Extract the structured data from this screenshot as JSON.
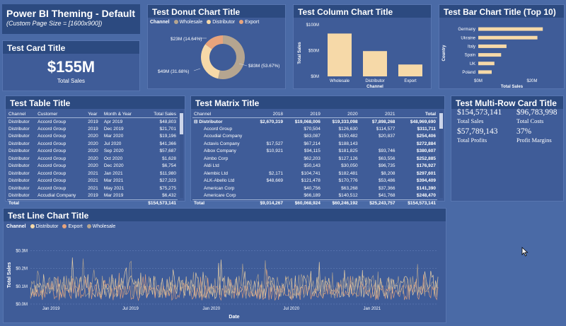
{
  "header": {
    "title": "Power BI Theming - Default",
    "subtitle": "(Custom Page Size = [1600x900])"
  },
  "card": {
    "title": "Test Card Title",
    "value": "$155M",
    "label": "Total Sales"
  },
  "donut": {
    "title": "Test Donut Chart Title",
    "legend_title": "Channel",
    "labels": [
      "$23M (14.64%)",
      "$49M (31.68%)",
      "$83M (53.67%)"
    ]
  },
  "column": {
    "title": "Test Column Chart Title"
  },
  "bar": {
    "title": "Test Bar Chart Title (Top 10)"
  },
  "table": {
    "title": "Test Table Title",
    "columns": [
      "Channel",
      "Customer",
      "Year",
      "Month & Year",
      "Total Sales"
    ],
    "rows": [
      [
        "Distributor",
        "Accord Group",
        "2019",
        "Apr 2019",
        "$48,803"
      ],
      [
        "Distributor",
        "Accord Group",
        "2019",
        "Dec 2019",
        "$21,701"
      ],
      [
        "Distributor",
        "Accord Group",
        "2020",
        "Mar 2020",
        "$19,196"
      ],
      [
        "Distributor",
        "Accord Group",
        "2020",
        "Jul 2020",
        "$41,366"
      ],
      [
        "Distributor",
        "Accord Group",
        "2020",
        "Sep 2020",
        "$57,687"
      ],
      [
        "Distributor",
        "Accord Group",
        "2020",
        "Oct 2020",
        "$1,628"
      ],
      [
        "Distributor",
        "Accord Group",
        "2020",
        "Dec 2020",
        "$6,754"
      ],
      [
        "Distributor",
        "Accord Group",
        "2021",
        "Jan 2021",
        "$11,980"
      ],
      [
        "Distributor",
        "Accord Group",
        "2021",
        "Mar 2021",
        "$27,323"
      ],
      [
        "Distributor",
        "Accord Group",
        "2021",
        "May 2021",
        "$75,275"
      ],
      [
        "Distributor",
        "Accudial Company",
        "2019",
        "Mar 2019",
        "$6,432"
      ]
    ],
    "total_label": "Total",
    "total_value": "$154,573,141"
  },
  "matrix": {
    "title": "Test Matrix Title",
    "columns": [
      "Channel",
      "2018",
      "2019",
      "2020",
      "2021",
      "Total"
    ],
    "group": [
      "⊟ Distributor",
      "$2,670,319",
      "$19,068,006",
      "$19,333,098",
      "$7,898,268",
      "$48,969,690"
    ],
    "rows": [
      [
        "Accord Group",
        "",
        "$70,504",
        "$126,630",
        "$114,577",
        "$311,711"
      ],
      [
        "Accudial Company",
        "",
        "$83,087",
        "$150,482",
        "$20,837",
        "$254,406"
      ],
      [
        "Actavis Company",
        "$17,527",
        "$67,214",
        "$188,143",
        "",
        "$272,884"
      ],
      [
        "Aibox Company",
        "$10,921",
        "$94,115",
        "$181,825",
        "$93,746",
        "$380,607"
      ],
      [
        "Aimbo Corp",
        "",
        "$62,203",
        "$127,126",
        "$63,556",
        "$252,885"
      ],
      [
        "Aldi Ltd",
        "",
        "$50,143",
        "$30,050",
        "$96,735",
        "$176,927"
      ],
      [
        "Alembic Ltd",
        "$2,171",
        "$104,741",
        "$182,481",
        "$8,208",
        "$297,601"
      ],
      [
        "ALK-Abello Ltd",
        "$48,669",
        "$121,478",
        "$170,776",
        "$53,486",
        "$394,409"
      ],
      [
        "American Corp",
        "",
        "$40,756",
        "$63,268",
        "$37,366",
        "$141,390"
      ],
      [
        "Americare Corp",
        "",
        "$66,189",
        "$140,512",
        "$41,768",
        "$248,470"
      ]
    ],
    "total": [
      "Total",
      "$9,014,267",
      "$60,068,924",
      "$60,246,192",
      "$25,243,757",
      "$154,573,141"
    ]
  },
  "multirow": {
    "title": "Test Multi-Row Card Title",
    "items": [
      {
        "value": "$154,573,141",
        "label": "Total Sales"
      },
      {
        "value": "$96,783,998",
        "label": "Total Costs"
      },
      {
        "value": "$57,789,143",
        "label": "Total Profits"
      },
      {
        "value": "37%",
        "label": "Profit Margins"
      }
    ]
  },
  "line": {
    "title": "Test Line Chart Title",
    "legend_title": "Channel"
  },
  "colors": {
    "wholesale": "#b5a590",
    "distributor": "#f6d9a8",
    "export": "#e8a47c",
    "panel": "#3f5c98",
    "title_bar": "#2c4a80",
    "background": "#4a6aa6"
  },
  "chart_data": [
    {
      "type": "pie",
      "chart": "donut",
      "title": "Test Donut Chart Title",
      "legend_title": "Channel",
      "categories": [
        "Wholesale",
        "Distributor",
        "Export"
      ],
      "values": [
        83,
        49,
        23
      ],
      "percent": [
        53.67,
        31.68,
        14.64
      ],
      "unit": "$M",
      "legend_position": "top-left"
    },
    {
      "type": "bar",
      "chart": "column",
      "title": "Test Column Chart Title",
      "xlabel": "Channel",
      "ylabel": "Total Sales",
      "categories": [
        "Wholesale",
        "Distributor",
        "Export"
      ],
      "values": [
        83,
        49,
        23
      ],
      "yticks": [
        "$0M",
        "$50M",
        "$100M"
      ],
      "ylim": [
        0,
        100
      ]
    },
    {
      "type": "bar",
      "chart": "horizontal-bar",
      "orientation": "horizontal",
      "title": "Test Bar Chart Title (Top 10)",
      "xlabel": "Total Sales",
      "ylabel": "Country",
      "categories": [
        "Germany",
        "Ukraine",
        "Italy",
        "Spain",
        "UK",
        "Poland"
      ],
      "values": [
        24,
        22,
        10.5,
        8.5,
        6,
        5
      ],
      "unit": "$M",
      "xticks": [
        "$0M",
        "$20M"
      ],
      "xlim": [
        0,
        25
      ]
    },
    {
      "type": "line",
      "chart": "line",
      "title": "Test Line Chart Title",
      "xlabel": "Date",
      "ylabel": "Total Sales",
      "legend_title": "Channel",
      "series_names": [
        "Distributor",
        "Export",
        "Wholesale"
      ],
      "yticks": [
        "$0.0M",
        "$0.1M",
        "$0.2M",
        "$0.3M"
      ],
      "ylim": [
        0,
        0.33
      ],
      "xticks": [
        "Jan 2019",
        "Jul 2019",
        "Jan 2020",
        "Jul 2020",
        "Jan 2021"
      ],
      "xlim": [
        "2018-11-15",
        "2021-05-31"
      ],
      "note": "dense daily sales, roughly $0.03M–$0.25M per day"
    }
  ]
}
